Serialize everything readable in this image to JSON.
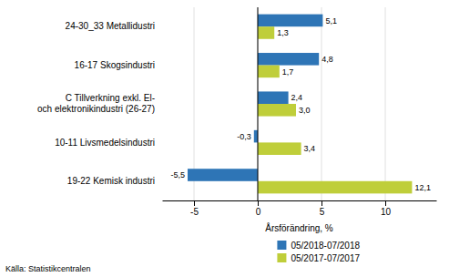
{
  "chart_data": {
    "type": "bar",
    "orientation": "horizontal",
    "categories": [
      "19-22 Kemisk industri",
      "10-11 Livsmedelsindustri",
      "C Tillverkning exkl. El-\noch elektronikindustri  (26-27)",
      "16-17 Skogsindustri",
      "24-30_33 Metallidustri"
    ],
    "series": [
      {
        "name": "05/2018-07/2018",
        "color": "#2E75B6",
        "values": [
          -5.5,
          -0.3,
          2.4,
          4.8,
          5.1
        ],
        "value_labels": [
          "-5,5",
          "-0,3",
          "2,4",
          "4,8",
          "5,1"
        ]
      },
      {
        "name": "05/2017-07/2017",
        "color": "#BFCE3A",
        "values": [
          12.1,
          3.4,
          3.0,
          1.7,
          1.3
        ],
        "value_labels": [
          "12,1",
          "3,4",
          "3,0",
          "1,7",
          "1,3"
        ]
      }
    ],
    "xlabel": "Årsförändring, %",
    "xlim": [
      -7.5,
      14.0
    ],
    "xticks": [
      -5,
      0,
      5,
      10
    ],
    "grid": true,
    "legend": "bottom",
    "data_labels": true,
    "annotations": [
      "Källa: Statistikcentralen"
    ]
  }
}
